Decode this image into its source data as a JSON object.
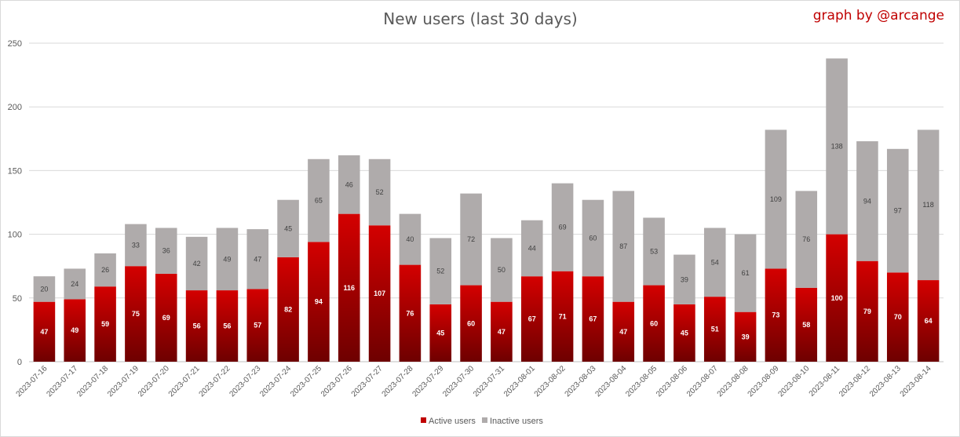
{
  "header": {
    "title": "New users (last 30 days)",
    "credit": "graph by @arcange"
  },
  "colors": {
    "active_top": "#d40000",
    "active_bottom": "#6e0000",
    "inactive": "#afabab",
    "grid": "#d9d9d9"
  },
  "chart_data": {
    "type": "bar",
    "stacked": true,
    "title": "New users (last 30 days)",
    "xlabel": "",
    "ylabel": "",
    "ylim": [
      0,
      250
    ],
    "yticks": [
      0,
      50,
      100,
      150,
      200,
      250
    ],
    "grid": true,
    "legend_position": "bottom",
    "categories": [
      "2023-07-16",
      "2023-07-17",
      "2023-07-18",
      "2023-07-19",
      "2023-07-20",
      "2023-07-21",
      "2023-07-22",
      "2023-07-23",
      "2023-07-24",
      "2023-07-25",
      "2023-07-26",
      "2023-07-27",
      "2023-07-28",
      "2023-07-29",
      "2023-07-30",
      "2023-07-31",
      "2023-08-01",
      "2023-08-02",
      "2023-08-03",
      "2023-08-04",
      "2023-08-05",
      "2023-08-06",
      "2023-08-07",
      "2023-08-08",
      "2023-08-09",
      "2023-08-10",
      "2023-08-11",
      "2023-08-12",
      "2023-08-13",
      "2023-08-14"
    ],
    "series": [
      {
        "name": "Active users",
        "color": "#c00000",
        "values": [
          47,
          49,
          59,
          75,
          69,
          56,
          56,
          57,
          82,
          94,
          116,
          107,
          76,
          45,
          60,
          47,
          67,
          71,
          67,
          47,
          60,
          45,
          51,
          39,
          73,
          58,
          100,
          79,
          70,
          64
        ]
      },
      {
        "name": "Inactive users",
        "color": "#afabab",
        "values": [
          20,
          24,
          26,
          33,
          36,
          42,
          49,
          47,
          45,
          65,
          46,
          52,
          40,
          52,
          72,
          50,
          44,
          69,
          60,
          87,
          53,
          39,
          54,
          61,
          109,
          76,
          138,
          94,
          97,
          118
        ]
      }
    ]
  }
}
